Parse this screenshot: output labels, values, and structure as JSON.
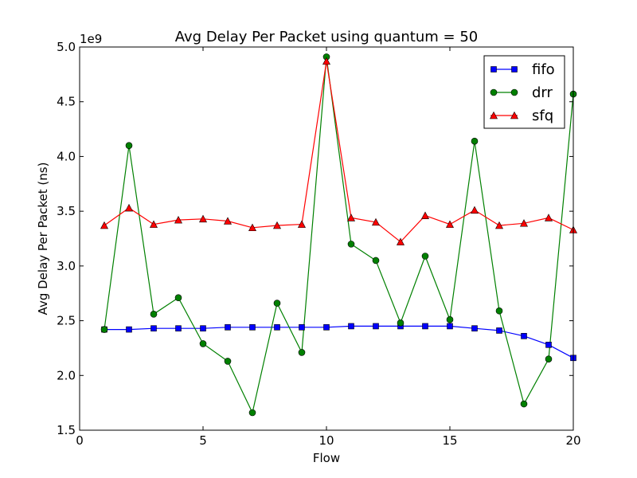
{
  "chart_data": {
    "type": "line",
    "title": "Avg Delay Per Packet using quantum = 50",
    "xlabel": "Flow",
    "ylabel": "Avg Delay Per Packet (ns)",
    "y_offset_label": "1e9",
    "xlim": [
      0,
      20
    ],
    "ylim": [
      1.5,
      5.0
    ],
    "xticks": [
      0,
      5,
      10,
      15,
      20
    ],
    "yticks": [
      1.5,
      2.0,
      2.5,
      3.0,
      3.5,
      4.0,
      4.5,
      5.0
    ],
    "xtick_labels": [
      "0",
      "5",
      "10",
      "15",
      "20"
    ],
    "ytick_labels": [
      "1.5",
      "2.0",
      "2.5",
      "3.0",
      "3.5",
      "4.0",
      "4.5",
      "5.0"
    ],
    "grid": false,
    "legend_position": "top-right",
    "x": [
      1,
      2,
      3,
      4,
      5,
      6,
      7,
      8,
      9,
      10,
      11,
      12,
      13,
      14,
      15,
      16,
      17,
      18,
      19,
      20
    ],
    "series": [
      {
        "name": "fifo",
        "color": "#0000ff",
        "marker": "square",
        "values": [
          2.42,
          2.42,
          2.43,
          2.43,
          2.43,
          2.44,
          2.44,
          2.44,
          2.44,
          2.44,
          2.45,
          2.45,
          2.45,
          2.45,
          2.45,
          2.43,
          2.41,
          2.36,
          2.28,
          2.16
        ]
      },
      {
        "name": "drr",
        "color": "#008000",
        "marker": "circle",
        "values": [
          2.42,
          4.1,
          2.56,
          2.71,
          2.29,
          2.13,
          1.66,
          2.66,
          2.21,
          4.91,
          3.2,
          3.05,
          2.48,
          3.09,
          2.51,
          4.14,
          2.59,
          1.74,
          2.15,
          4.57
        ]
      },
      {
        "name": "sfq",
        "color": "#ff0000",
        "marker": "triangle",
        "values": [
          3.37,
          3.53,
          3.38,
          3.42,
          3.43,
          3.41,
          3.35,
          3.37,
          3.38,
          4.87,
          3.44,
          3.4,
          3.22,
          3.46,
          3.38,
          3.51,
          3.37,
          3.39,
          3.44,
          3.33
        ]
      }
    ]
  }
}
